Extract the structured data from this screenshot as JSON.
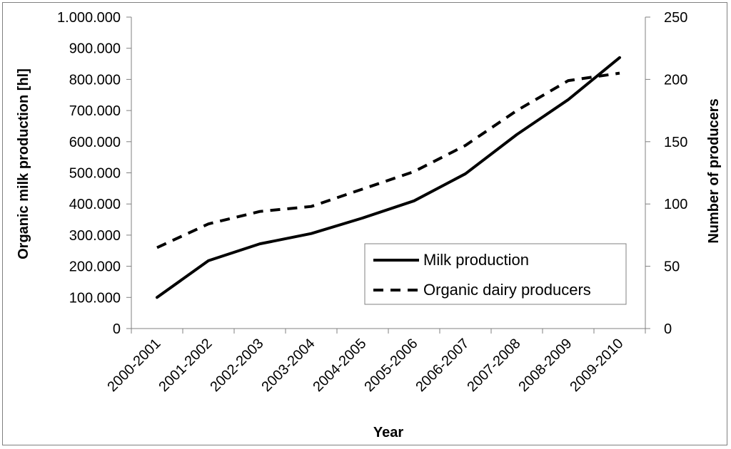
{
  "chart_data": {
    "type": "line",
    "title": "",
    "xlabel": "Year",
    "ylabel": "Organic milk production [hl]",
    "y2label": "Number of producers",
    "categories": [
      "2000-2001",
      "2001-2002",
      "2002-2003",
      "2003-2004",
      "2004-2005",
      "2005-2006",
      "2006-2007",
      "2007-2008",
      "2008-2009",
      "2009-2010"
    ],
    "ylim": [
      0,
      1000000
    ],
    "y2lim": [
      0,
      250
    ],
    "y_ticks": [
      0,
      100000,
      200000,
      300000,
      400000,
      500000,
      600000,
      700000,
      800000,
      900000,
      1000000
    ],
    "y_tick_labels": [
      "0",
      "100.000",
      "200.000",
      "300.000",
      "400.000",
      "500.000",
      "600.000",
      "700.000",
      "800.000",
      "900.000",
      "1.000.000"
    ],
    "y2_ticks": [
      0,
      50,
      100,
      150,
      200,
      250
    ],
    "y2_tick_labels": [
      "0",
      "50",
      "100",
      "150",
      "200",
      "250"
    ],
    "series": [
      {
        "name": "Milk production",
        "axis": "left",
        "style": "solid",
        "values": [
          100000,
          218000,
          272000,
          305000,
          355000,
          410000,
          497000,
          623000,
          735000,
          870000
        ]
      },
      {
        "name": "Organic dairy producers",
        "axis": "right",
        "style": "dashed",
        "values": [
          65,
          84,
          94,
          98,
          112,
          126,
          147,
          175,
          199,
          205
        ]
      }
    ],
    "legend_position": "bottom-right",
    "grid": false
  },
  "colors": {
    "line": "#000000",
    "axis": "#808080",
    "frame": "#808080"
  }
}
